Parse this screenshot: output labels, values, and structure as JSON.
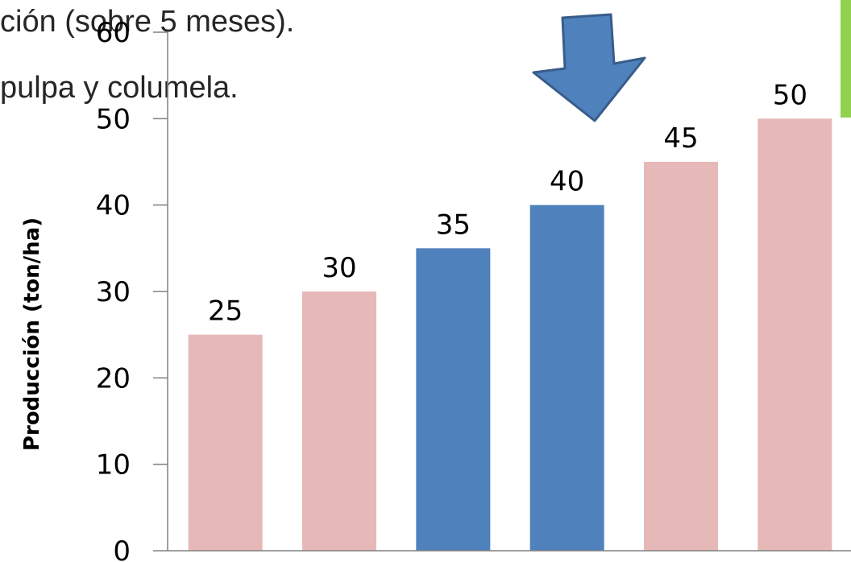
{
  "overlay": {
    "line1": "ción (sobre 5 meses).",
    "line2": "pulpa y columela."
  },
  "colors": {
    "highlight": "#4f81bd",
    "normal": "#e6b9b8",
    "arrow_fill": "#4f81bd",
    "arrow_stroke": "#385d8a",
    "accent": "#92d050",
    "axis": "#808080"
  },
  "icons": {
    "pointer": "down-arrow-icon"
  },
  "chart_data": {
    "type": "bar",
    "title": "",
    "xlabel": "",
    "ylabel": "Producción (ton/ha)",
    "ylim": [
      0,
      60
    ],
    "yticks": [
      0,
      10,
      20,
      30,
      40,
      50,
      60
    ],
    "grid": false,
    "legend": "none",
    "values": [
      25,
      30,
      35,
      40,
      45,
      50
    ],
    "highlighted": [
      false,
      false,
      true,
      true,
      false,
      false
    ],
    "data_labels": [
      "25",
      "30",
      "35",
      "40",
      "45",
      "50"
    ],
    "arrow_points_to_index": 3
  }
}
